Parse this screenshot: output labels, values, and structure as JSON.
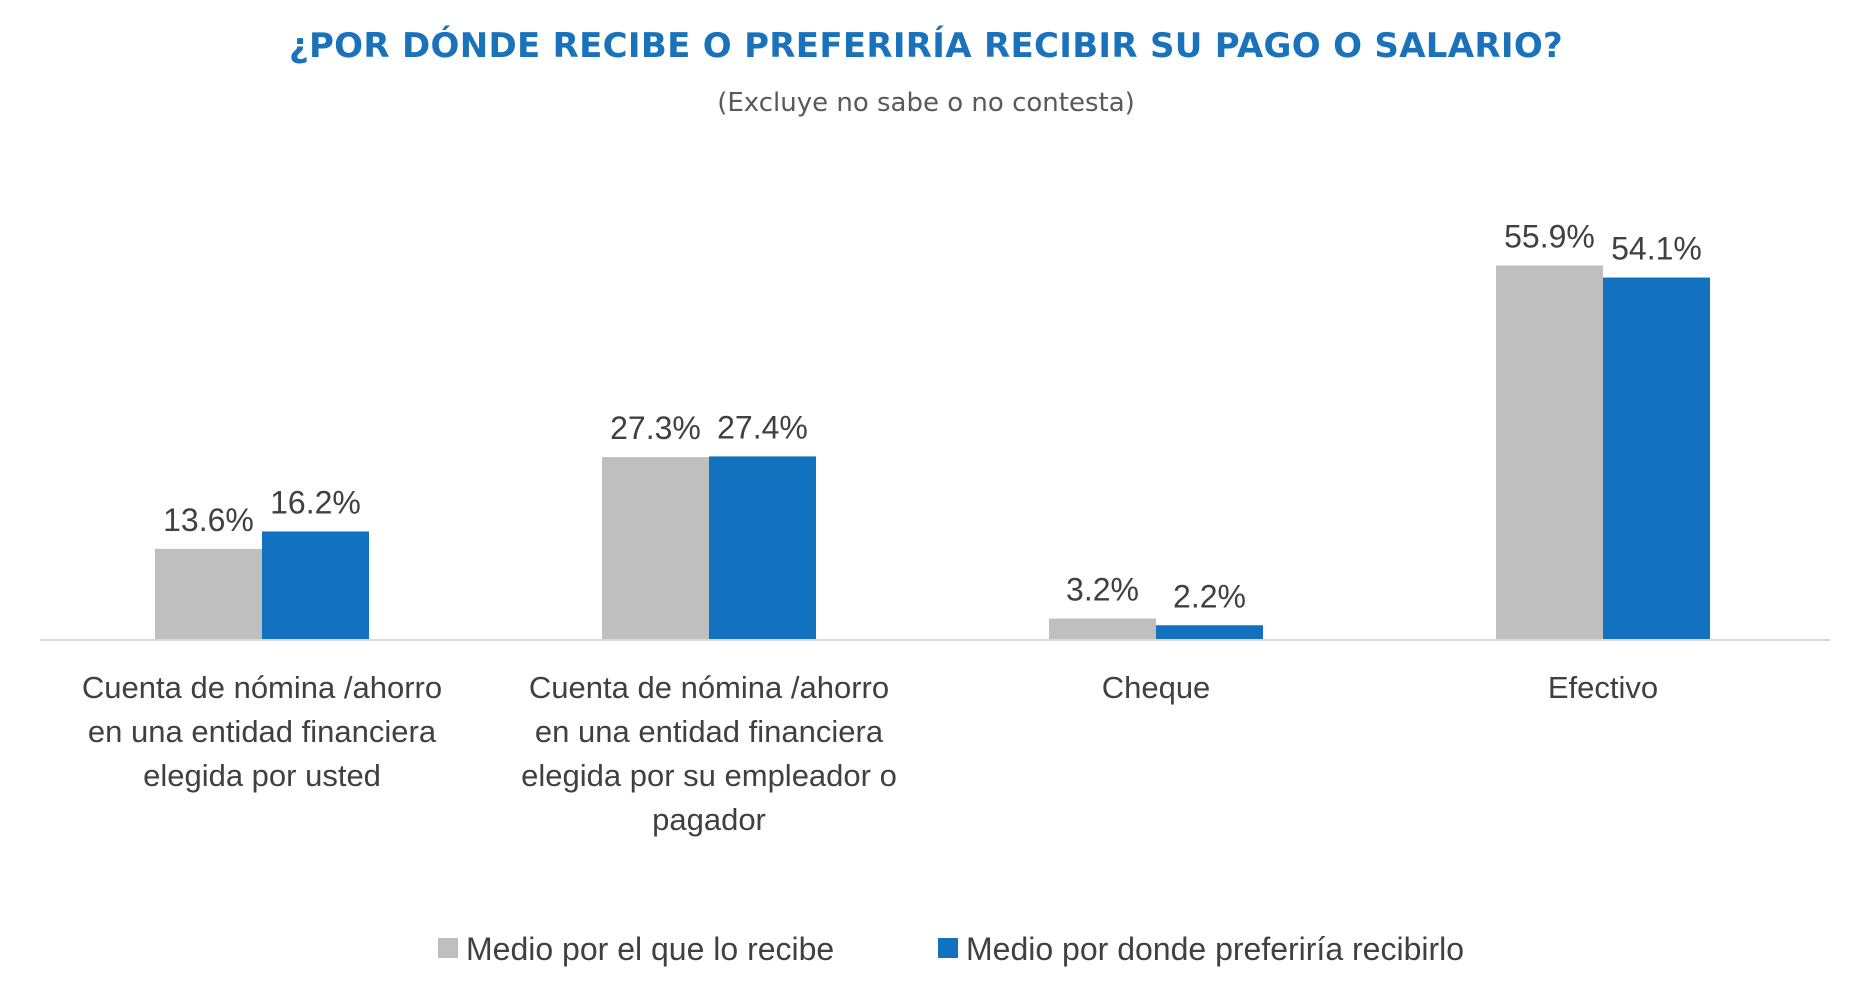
{
  "chart_data": {
    "type": "bar",
    "title": "¿POR DÓNDE RECIBE O PREFERIRÍA RECIBIR SU PAGO O SALARIO?",
    "subtitle": "(Excluye no sabe o no contesta)",
    "categories": [
      [
        "Cuenta de nómina /ahorro",
        "en una entidad financiera",
        "elegida por usted"
      ],
      [
        "Cuenta de nómina /ahorro",
        "en una entidad financiera",
        "elegida por su empleador o",
        "pagador"
      ],
      [
        "Cheque"
      ],
      [
        "Efectivo"
      ]
    ],
    "series": [
      {
        "name": "Medio por el que lo recibe",
        "color": "#bfbfbf",
        "values": [
          13.6,
          27.3,
          3.2,
          55.9
        ],
        "labels": [
          "13.6%",
          "27.3%",
          "3.2%",
          "55.9%"
        ]
      },
      {
        "name": "Medio por donde preferiría recibirlo",
        "color": "#1272bf",
        "values": [
          16.2,
          27.4,
          2.2,
          54.1
        ],
        "labels": [
          "16.2%",
          "27.4%",
          "2.2%",
          "54.1%"
        ]
      }
    ],
    "ylim": [
      0,
      60
    ],
    "grid": false,
    "legend_position": "bottom"
  }
}
